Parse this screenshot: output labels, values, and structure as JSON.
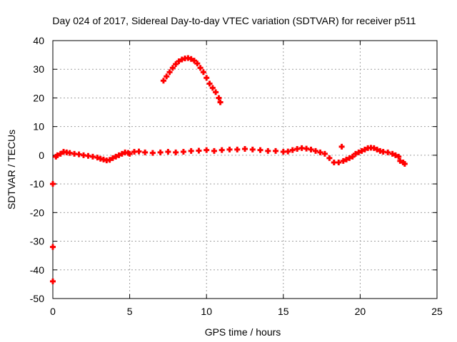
{
  "chart_data": {
    "type": "scatter",
    "title": "Day 024 of 2017, Sidereal Day-to-day VTEC variation (SDTVAR) for receiver p511",
    "xlabel": "GPS time / hours",
    "ylabel": "SDTVAR / TECUs",
    "xlim": [
      0,
      25
    ],
    "ylim": [
      -50,
      40
    ],
    "xticks": [
      0,
      5,
      10,
      15,
      20,
      25
    ],
    "yticks": [
      -50,
      -40,
      -30,
      -20,
      -10,
      0,
      10,
      20,
      30,
      40
    ],
    "grid": true,
    "marker": "+",
    "series": [
      {
        "name": "SDTVAR",
        "color": "#ff0000",
        "x": [
          0.0,
          0.0,
          0.0,
          0.2,
          0.3,
          0.5,
          0.7,
          0.9,
          1.1,
          1.4,
          1.7,
          2.0,
          2.3,
          2.6,
          2.9,
          3.1,
          3.3,
          3.5,
          3.7,
          3.9,
          4.1,
          4.3,
          4.5,
          4.7,
          4.9,
          5.0,
          5.3,
          5.6,
          6.0,
          6.5,
          7.0,
          7.5,
          8.0,
          8.5,
          9.0,
          9.5,
          10.0,
          10.5,
          11.0,
          11.5,
          12.0,
          12.5,
          13.0,
          13.5,
          14.0,
          14.5,
          15.0,
          15.3,
          15.6,
          15.9,
          16.2,
          16.5,
          16.8,
          17.1,
          17.4,
          17.7,
          18.0,
          18.3,
          18.6,
          18.9,
          19.1,
          19.3,
          19.5,
          19.7,
          19.9,
          20.1,
          20.3,
          20.5,
          20.7,
          20.9,
          21.1,
          21.3,
          21.5,
          21.8,
          22.1,
          22.3,
          22.5,
          22.6,
          22.8,
          22.9,
          18.8,
          7.2,
          7.4,
          7.6,
          7.8,
          8.0,
          8.2,
          8.4,
          8.6,
          8.8,
          9.0,
          9.2,
          9.4,
          9.6,
          9.8,
          10.0,
          10.2,
          10.4,
          10.6,
          10.8,
          10.9
        ],
        "y": [
          -10,
          -32,
          -44,
          -0.5,
          0.0,
          0.5,
          1.2,
          1.0,
          0.8,
          0.5,
          0.3,
          0.0,
          -0.2,
          -0.5,
          -0.8,
          -1.2,
          -1.5,
          -1.8,
          -1.6,
          -1.0,
          -0.5,
          0.0,
          0.5,
          1.0,
          0.8,
          0.5,
          1.2,
          1.3,
          1.0,
          0.8,
          1.0,
          1.2,
          1.0,
          1.2,
          1.5,
          1.6,
          1.8,
          1.5,
          1.8,
          2.0,
          2.0,
          2.2,
          2.0,
          1.8,
          1.5,
          1.5,
          1.2,
          1.3,
          1.8,
          2.2,
          2.5,
          2.3,
          2.0,
          1.5,
          1.0,
          0.5,
          -1.0,
          -2.5,
          -2.5,
          -2.0,
          -1.5,
          -1.0,
          -0.5,
          0.5,
          1.0,
          1.5,
          2.0,
          2.5,
          2.6,
          2.5,
          2.0,
          1.5,
          1.2,
          1.0,
          0.5,
          0.0,
          -0.5,
          -2.0,
          -2.5,
          -3.0,
          3.0,
          26.0,
          27.5,
          29.0,
          30.5,
          31.8,
          32.8,
          33.4,
          33.8,
          33.9,
          33.6,
          33.0,
          32.0,
          30.5,
          29.0,
          27.0,
          25.0,
          23.5,
          22.0,
          20.0,
          18.5
        ]
      }
    ]
  }
}
